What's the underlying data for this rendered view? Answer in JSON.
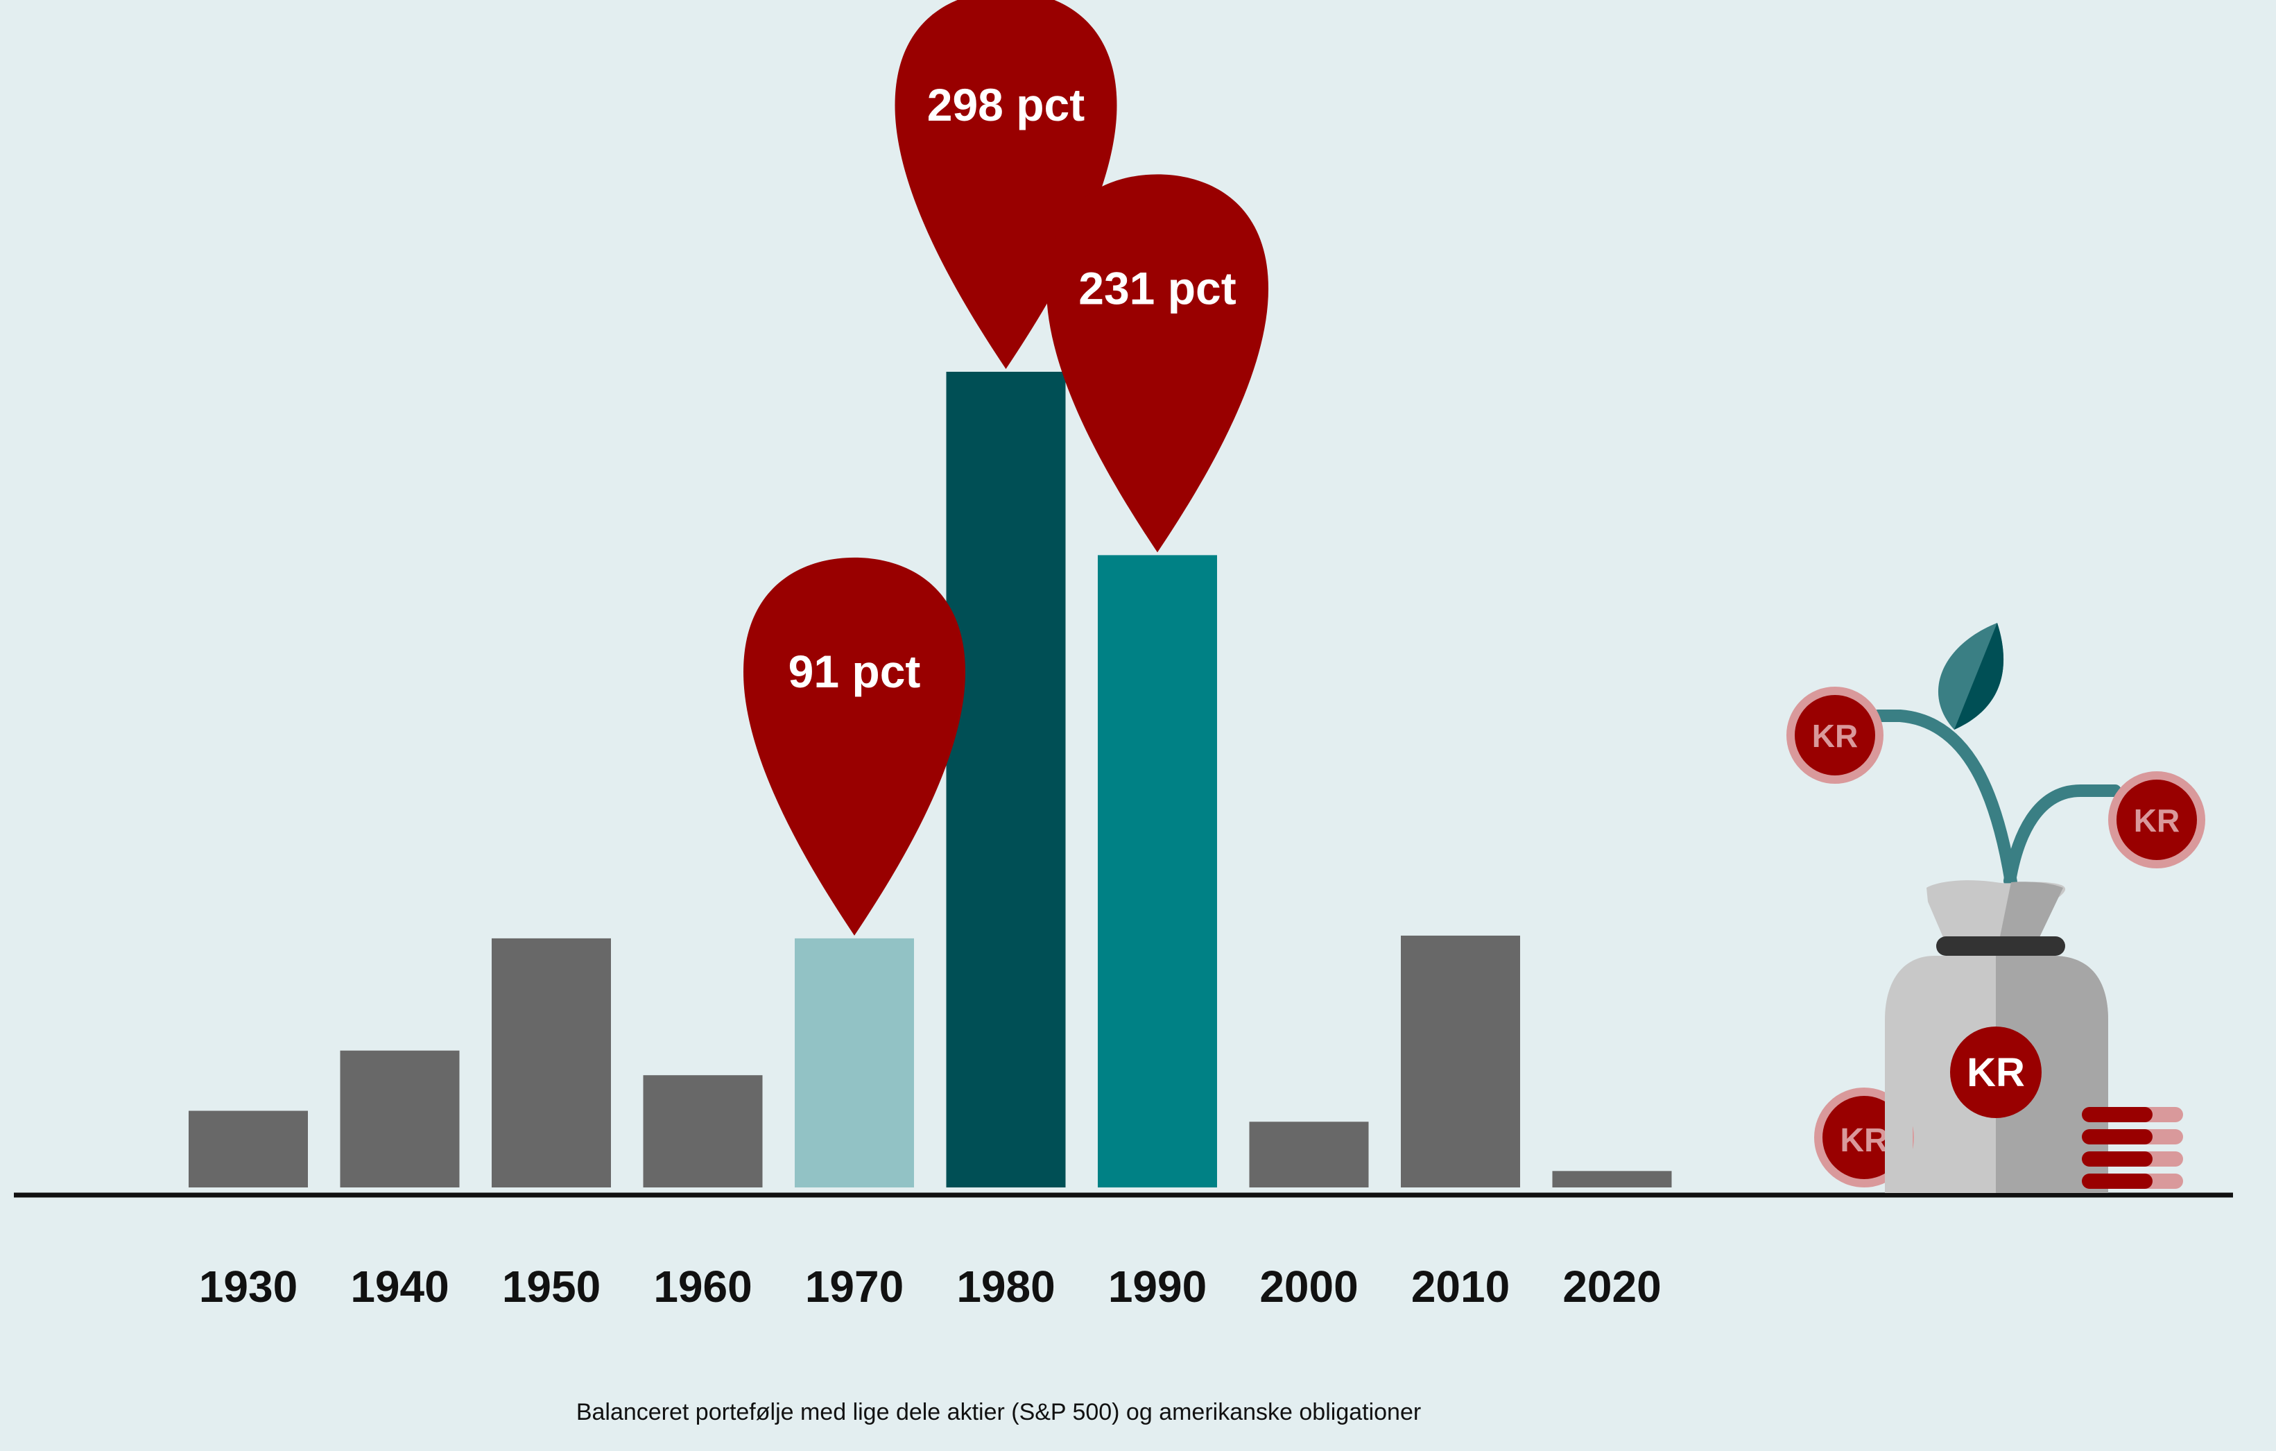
{
  "chart_data": {
    "type": "bar",
    "title": "",
    "caption": "Balanceret portefølje med lige dele aktier (S&P 500) og amerikanske obligationer",
    "xlabel": "",
    "ylabel": "",
    "categories": [
      "1930",
      "1940",
      "1950",
      "1960",
      "1970",
      "1980",
      "1990",
      "2000",
      "2010",
      "2020"
    ],
    "values": [
      28,
      50,
      91,
      41,
      91,
      298,
      231,
      24,
      92,
      6
    ],
    "ylim": [
      0,
      300
    ],
    "grid": false,
    "bar_colors": [
      "#686868",
      "#686868",
      "#686868",
      "#686868",
      "#92c2c5",
      "#004f55",
      "#008185",
      "#686868",
      "#686868",
      "#686868"
    ],
    "annotations": [
      {
        "category": "1970",
        "text": "91 pct"
      },
      {
        "category": "1980",
        "text": "298 pct"
      },
      {
        "category": "1990",
        "text": "231 pct"
      }
    ]
  },
  "colors": {
    "background": "#e3eef0",
    "highlight_marker": "#990000",
    "axis": "#111111"
  },
  "illustration": {
    "name": "money-bag-plant-icon",
    "coin_label": "KR"
  }
}
